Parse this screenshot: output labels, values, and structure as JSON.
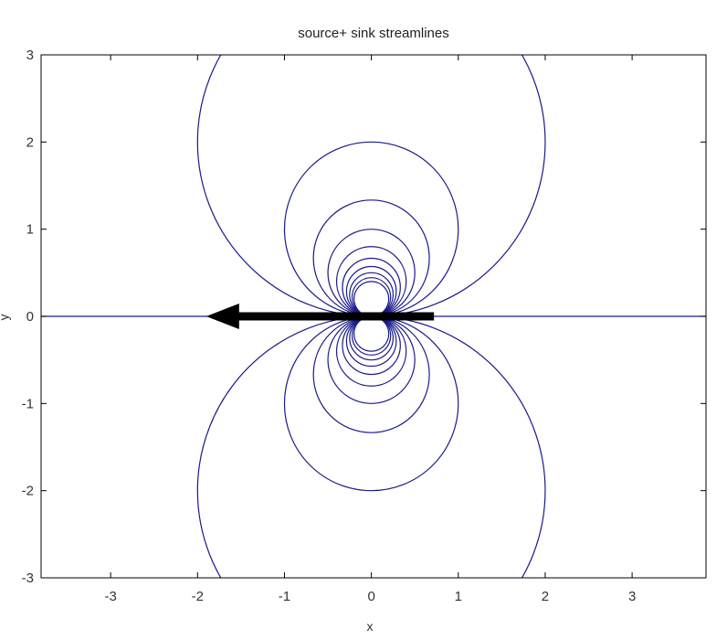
{
  "chart_data": {
    "type": "line",
    "title": "source+ sink streamlines",
    "xlabel": "x",
    "ylabel": "y",
    "xlim": [
      -3.8,
      3.85
    ],
    "ylim": [
      -3,
      3
    ],
    "xticks": [
      -3,
      -2,
      -1,
      0,
      1,
      2,
      3
    ],
    "yticks": [
      -3,
      -2,
      -1,
      0,
      1,
      2,
      3
    ],
    "grid": false,
    "line_color": "#1a1a8c",
    "arrow_color": "#000000",
    "streamline_circles": {
      "description_of_family": "circles tangent to the x-axis at the origin",
      "center_y": [
        2.0,
        1.0,
        0.667,
        0.5,
        0.4,
        0.333,
        0.286,
        0.25,
        0.222,
        0.2,
        -2.0,
        -1.0,
        -0.667,
        -0.5,
        -0.4,
        -0.333,
        -0.286,
        -0.25,
        -0.222,
        -0.2
      ],
      "radius": [
        2.0,
        1.0,
        0.667,
        0.5,
        0.4,
        0.333,
        0.286,
        0.25,
        0.222,
        0.2,
        2.0,
        1.0,
        0.667,
        0.5,
        0.4,
        0.333,
        0.286,
        0.25,
        0.222,
        0.2
      ]
    },
    "axis_streamline": {
      "y": 0,
      "x_range": [
        -3.8,
        3.85
      ]
    },
    "arrow": {
      "from_x": 0.72,
      "to_x": -1.9,
      "y": 0
    }
  }
}
